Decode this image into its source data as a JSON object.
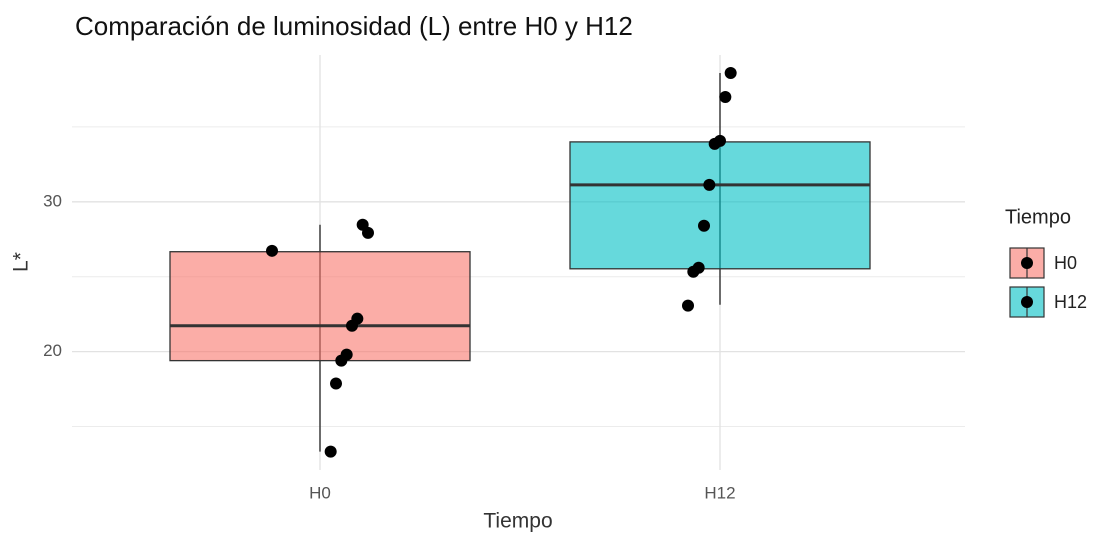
{
  "chart_data": {
    "type": "box",
    "title": "Comparación de luminosidad (L) entre H0 y H12",
    "x_label": "Tiempo",
    "y_label": "L*",
    "legend": {
      "title": "Tiempo",
      "position": "right"
    },
    "categories": [
      "H0",
      "H12"
    ],
    "series": [
      {
        "name": "H0",
        "color": "#F8766D",
        "whisker_low": 13.33,
        "q1": 19.4,
        "median": 21.73,
        "q3": 26.67,
        "whisker_high": 28.47,
        "points": [
          26.73,
          27.93,
          28.47,
          22.2,
          21.73,
          19.8,
          19.4,
          17.87,
          13.33
        ]
      },
      {
        "name": "H12",
        "color": "#00BFC4",
        "whisker_low": 23.13,
        "q1": 25.53,
        "median": 31.13,
        "q3": 34.0,
        "whisker_high": 38.6,
        "points": [
          38.6,
          37.0,
          34.07,
          33.87,
          31.13,
          28.4,
          25.6,
          25.33,
          23.07
        ]
      }
    ],
    "ylim": [
      12.1,
      39.8
    ],
    "yticks": [
      20,
      30
    ],
    "yminor": [
      15,
      25,
      35
    ],
    "grid": true
  }
}
